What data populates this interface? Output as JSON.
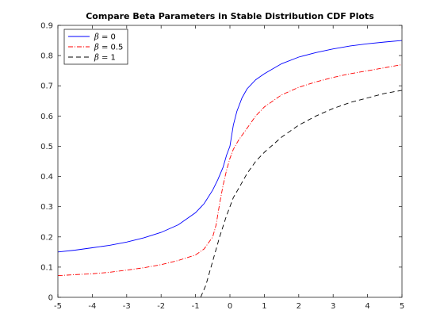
{
  "chart_data": {
    "type": "line",
    "title": "Compare Beta Parameters in Stable Distribution CDF Plots",
    "xlabel": "",
    "ylabel": "",
    "xlim": [
      -5,
      5
    ],
    "ylim": [
      0,
      0.9
    ],
    "xticks": [
      "-5",
      "-4",
      "-3",
      "-2",
      "-1",
      "0",
      "1",
      "2",
      "3",
      "4",
      "5"
    ],
    "yticks": [
      "0",
      "0.1",
      "0.2",
      "0.3",
      "0.4",
      "0.5",
      "0.6",
      "0.7",
      "0.8",
      "0.9"
    ],
    "grid": false,
    "legend_position": "top-left",
    "series": [
      {
        "name": "β = 0",
        "legend_symbol": "β",
        "legend_value": "= 0",
        "color": "#0000ff",
        "dash": "solid",
        "x": [
          -5,
          -4.5,
          -4,
          -3.5,
          -3,
          -2.5,
          -2,
          -1.5,
          -1,
          -0.75,
          -0.5,
          -0.35,
          -0.2,
          -0.1,
          0,
          0.1,
          0.2,
          0.35,
          0.5,
          0.75,
          1,
          1.5,
          2,
          2.5,
          3,
          3.5,
          4,
          4.5,
          5
        ],
        "y": [
          0.15,
          0.156,
          0.164,
          0.172,
          0.183,
          0.197,
          0.215,
          0.24,
          0.28,
          0.31,
          0.355,
          0.39,
          0.43,
          0.47,
          0.5,
          0.57,
          0.615,
          0.66,
          0.69,
          0.72,
          0.74,
          0.773,
          0.795,
          0.81,
          0.822,
          0.832,
          0.839,
          0.845,
          0.85
        ]
      },
      {
        "name": "β = 0.5",
        "legend_symbol": "β",
        "legend_value": "= 0.5",
        "color": "#ff0000",
        "dash": "dashdot",
        "x": [
          -5,
          -4.5,
          -4,
          -3.5,
          -3,
          -2.5,
          -2,
          -1.5,
          -1,
          -0.75,
          -0.5,
          -0.4,
          -0.3,
          -0.2,
          -0.1,
          0,
          0.1,
          0.25,
          0.5,
          0.75,
          1,
          1.5,
          2,
          2.5,
          3,
          3.5,
          4,
          4.5,
          5
        ],
        "y": [
          0.072,
          0.075,
          0.078,
          0.083,
          0.09,
          0.098,
          0.108,
          0.122,
          0.14,
          0.16,
          0.2,
          0.24,
          0.31,
          0.37,
          0.42,
          0.46,
          0.49,
          0.52,
          0.56,
          0.6,
          0.63,
          0.67,
          0.695,
          0.713,
          0.728,
          0.74,
          0.75,
          0.76,
          0.77
        ]
      },
      {
        "name": "β = 1",
        "legend_symbol": "β",
        "legend_value": "= 1",
        "color": "#000000",
        "dash": "dashed",
        "x": [
          -0.85,
          -0.7,
          -0.5,
          -0.3,
          -0.1,
          0,
          0.1,
          0.25,
          0.5,
          0.75,
          1,
          1.5,
          2,
          2.5,
          3,
          3.5,
          4,
          4.5,
          5
        ],
        "y": [
          0,
          0.04,
          0.12,
          0.2,
          0.27,
          0.3,
          0.33,
          0.36,
          0.41,
          0.45,
          0.48,
          0.53,
          0.57,
          0.6,
          0.625,
          0.645,
          0.66,
          0.675,
          0.685
        ]
      }
    ]
  }
}
